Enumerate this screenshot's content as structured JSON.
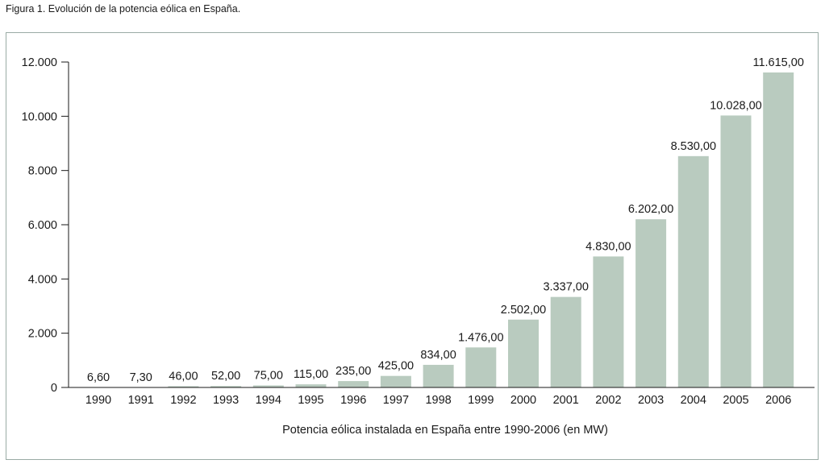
{
  "figure_title": "Figura 1. Evolución de la potencia eólica en España.",
  "chart_data": {
    "type": "bar",
    "title": "Figura 1. Evolución de la potencia eólica en España.",
    "xlabel": "Potencia eólica instalada en España entre 1990-2006 (en MW)",
    "ylabel": "",
    "ylim": [
      0,
      12000
    ],
    "yticks": [
      0,
      2000,
      4000,
      6000,
      8000,
      10000,
      12000
    ],
    "ytick_labels": [
      "0",
      "2.000",
      "4.000",
      "6.000",
      "8.000",
      "10.000",
      "12.000"
    ],
    "categories": [
      "1990",
      "1991",
      "1992",
      "1993",
      "1994",
      "1995",
      "1996",
      "1997",
      "1998",
      "1999",
      "2000",
      "2001",
      "2002",
      "2003",
      "2004",
      "2005",
      "2006"
    ],
    "values": [
      6.6,
      7.3,
      46,
      52,
      75,
      115,
      235,
      425,
      834,
      1476,
      2502,
      3337,
      4830,
      6202,
      8530,
      10028,
      11615
    ],
    "data_labels": [
      "6,60",
      "7,30",
      "46,00",
      "52,00",
      "75,00",
      "115,00",
      "235,00",
      "425,00",
      "834,00",
      "1.476,00",
      "2.502,00",
      "3.337,00",
      "4.830,00",
      "6.202,00",
      "8.530,00",
      "10.028,00",
      "11.615,00"
    ],
    "grid": false,
    "bar_color": "#b9cbbf",
    "frame_color": "#9aaba5"
  }
}
